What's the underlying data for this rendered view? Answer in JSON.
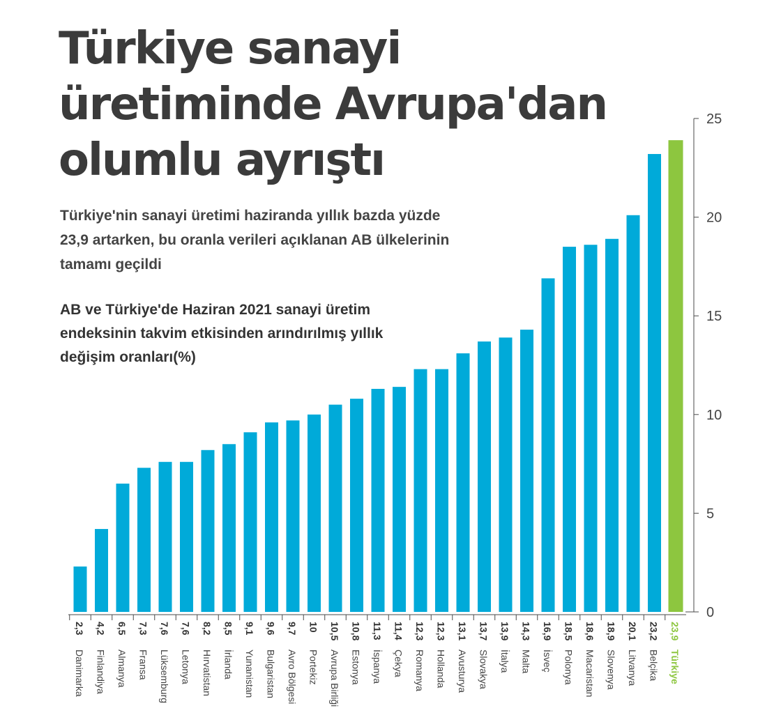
{
  "header": {
    "title": "Türkiye sanayi üretiminde Avrupa'dan olumlu ayrıştı",
    "subtitle": "Türkiye'nin sanayi üretimi haziranda yıllık bazda yüzde 23,9 artarken, bu oranla verileri açıklanan AB ülkelerinin tamamı geçildi",
    "description": "AB ve Türkiye'de Haziran 2021 sanayi üretim endeksinin takvim etkisinden arındırılmış yıllık değişim oranları(%)"
  },
  "colors": {
    "bar": "#00aad9",
    "highlight": "#8dc63f",
    "text": "#3a3a3a",
    "axis": "#4a4a4a"
  },
  "chart_data": {
    "type": "bar",
    "categories": [
      "Danimarka",
      "Finlandiya",
      "Almanya",
      "Fransa",
      "Lüksemburg",
      "Letonya",
      "Hırvatistan",
      "İrlanda",
      "Yunanistan",
      "Bulgaristan",
      "Avro Bölgesi",
      "Portekiz",
      "Avrupa Birliği",
      "Estonya",
      "İspanya",
      "Çekya",
      "Romanya",
      "Hollanda",
      "Avusturya",
      "Slovakya",
      "İtalya",
      "Malta",
      "İsveç",
      "Polonya",
      "Macaristan",
      "Slovenya",
      "Litvanya",
      "Belçika",
      "Türkiye"
    ],
    "values": [
      2.3,
      4.2,
      6.5,
      7.3,
      7.6,
      7.6,
      8.2,
      8.5,
      9.1,
      9.6,
      9.7,
      10,
      10.5,
      10.8,
      11.3,
      11.4,
      12.3,
      12.3,
      13.1,
      13.7,
      13.9,
      14.3,
      16.9,
      18.5,
      18.6,
      18.9,
      20.1,
      23.2,
      23.9
    ],
    "value_labels": [
      "2,3",
      "4,2",
      "6,5",
      "7,3",
      "7,6",
      "7,6",
      "8,2",
      "8,5",
      "9,1",
      "9,6",
      "9,7",
      "10",
      "10,5",
      "10,8",
      "11,3",
      "11,4",
      "12,3",
      "12,3",
      "13,1",
      "13,7",
      "13,9",
      "14,3",
      "16,9",
      "18,5",
      "18,6",
      "18,9",
      "20,1",
      "23,2",
      "23,9"
    ],
    "highlight_category": "Türkiye",
    "yticks": [
      "0",
      "5",
      "10",
      "15",
      "20",
      "25"
    ],
    "ylim": [
      0,
      25
    ],
    "axis_position": "right",
    "grid": false,
    "title": "",
    "xlabel": "",
    "ylabel": ""
  }
}
